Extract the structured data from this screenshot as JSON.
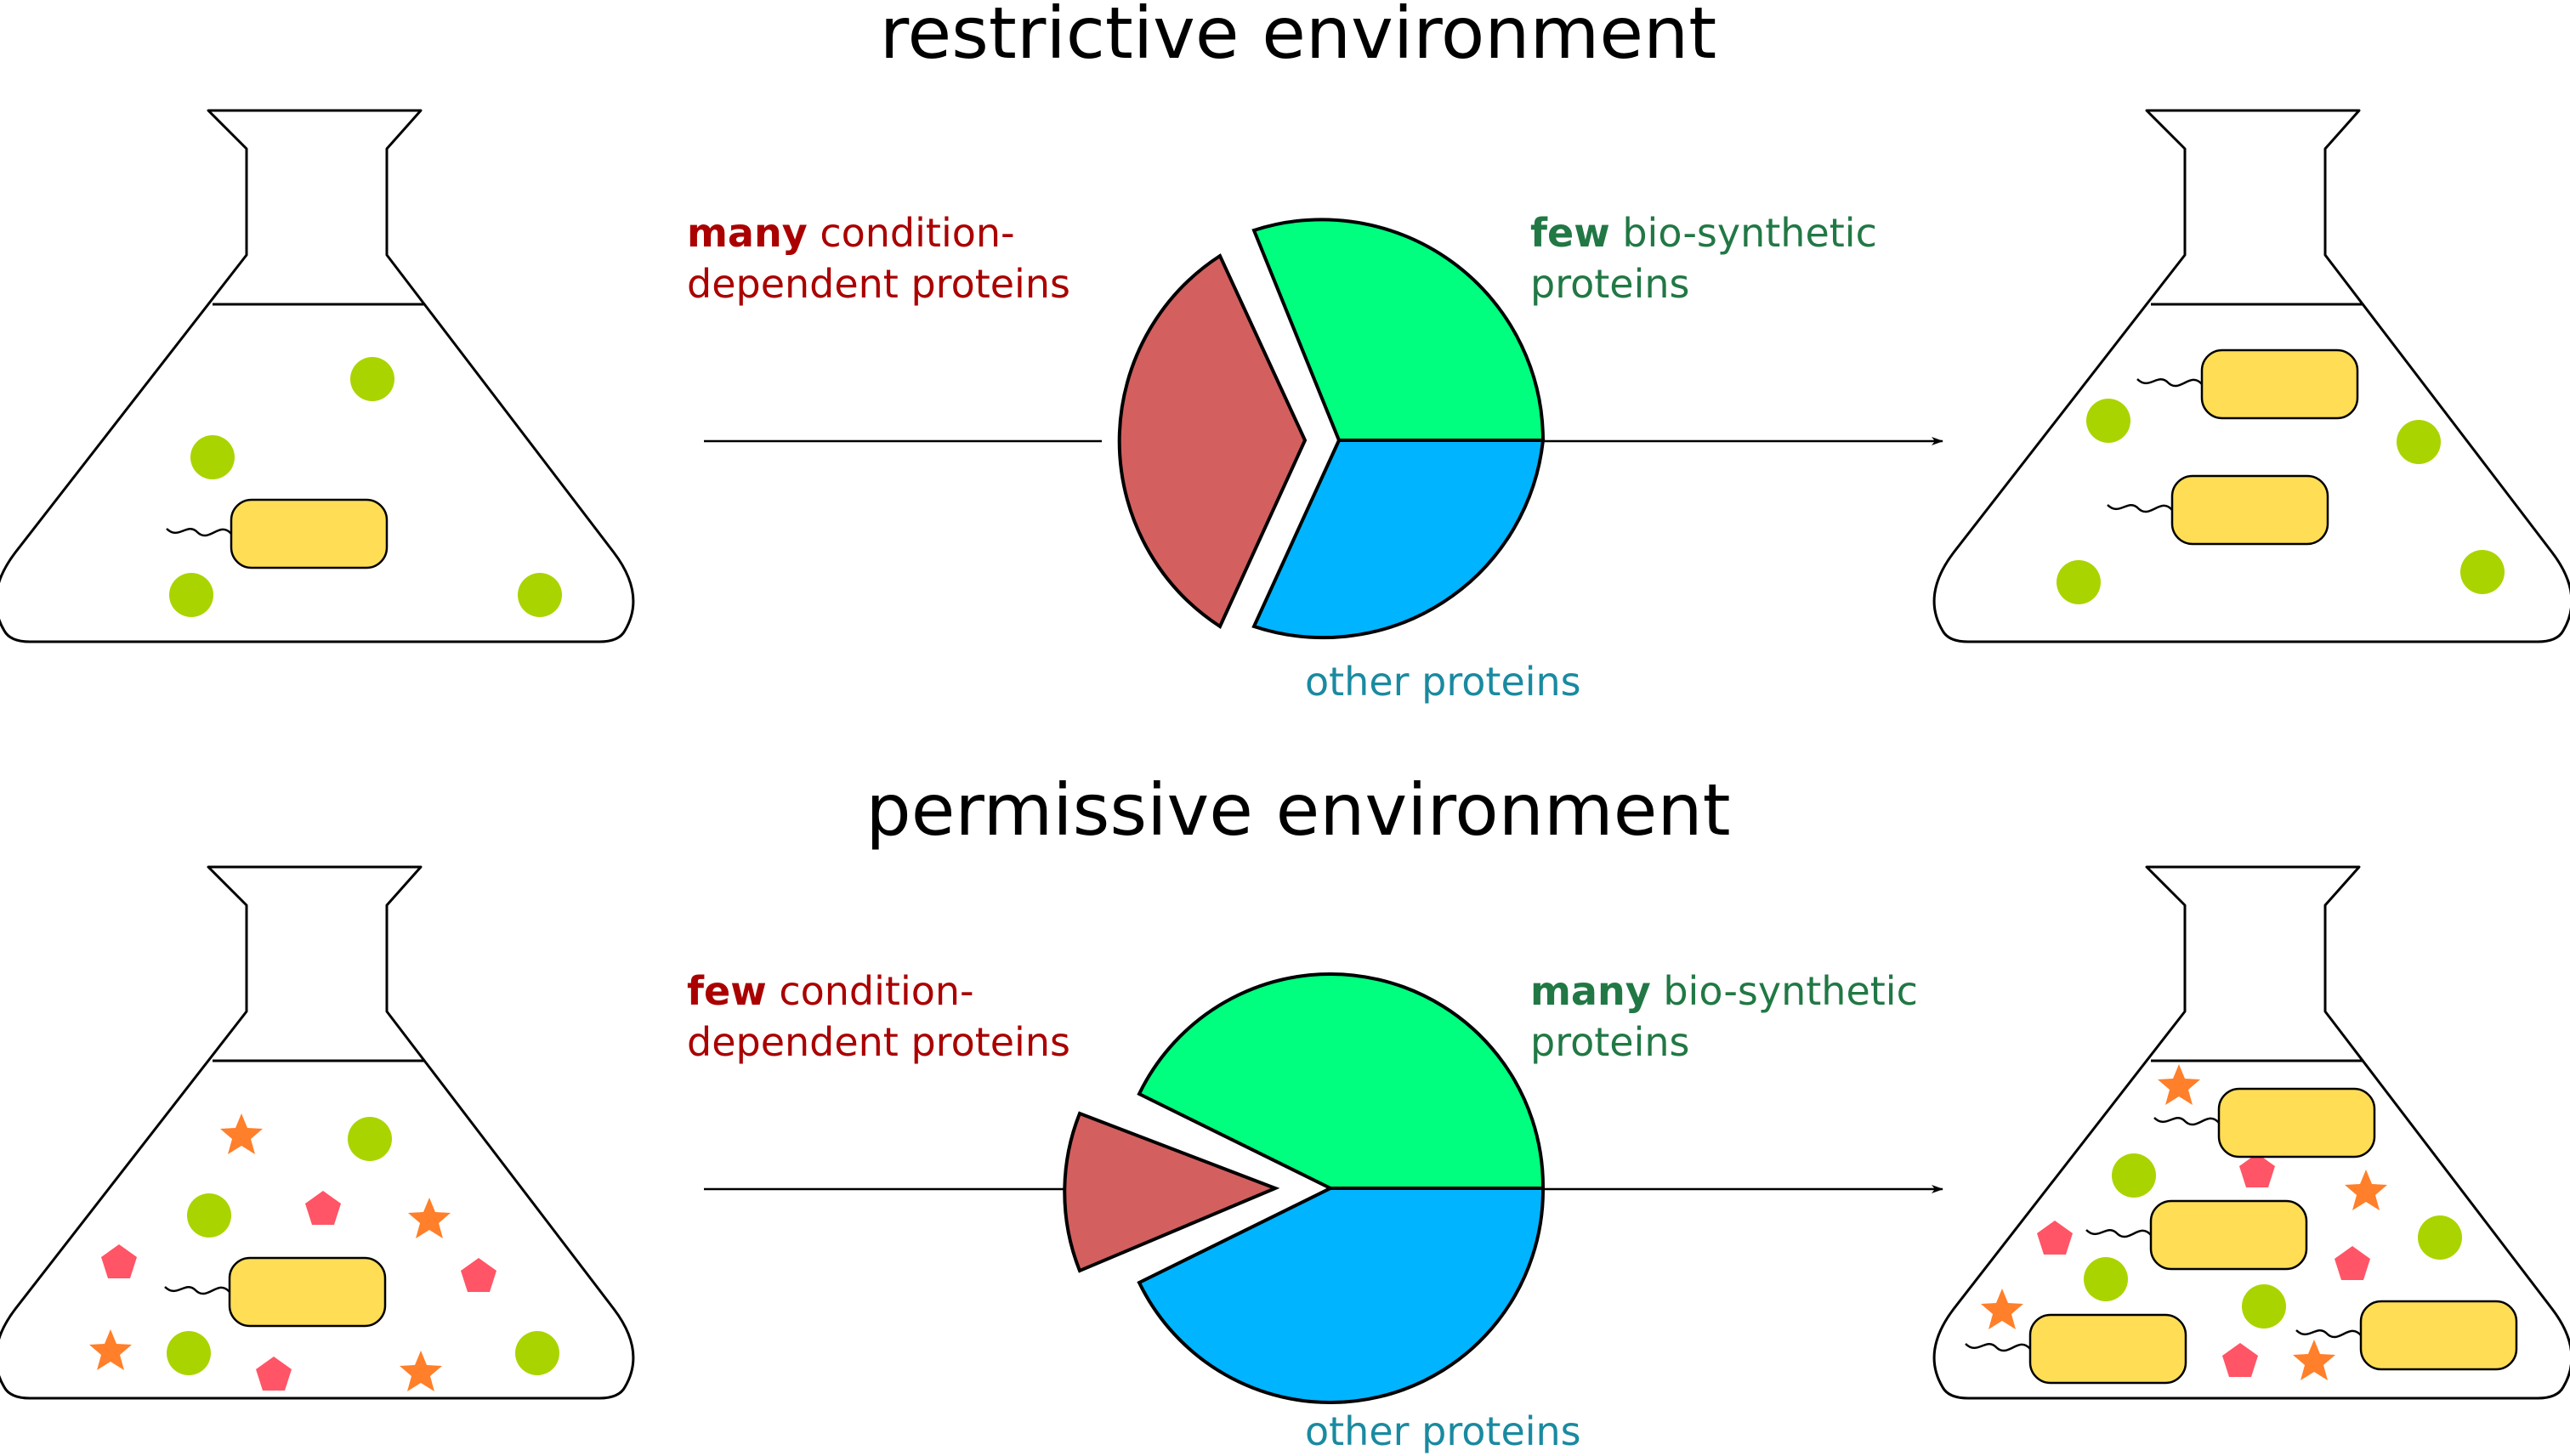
{
  "titles": {
    "restrictive": "restrictive environment",
    "permissive": "permissive environment"
  },
  "restrictive": {
    "cond_dep": {
      "qty": "many",
      "line1_rest": "condition-",
      "line2": "dependent proteins"
    },
    "biosynth": {
      "qty": "few",
      "line1_rest": "bio-synthetic",
      "line2": "proteins"
    },
    "other": "other proteins",
    "pie_fractions": {
      "condition_dependent": 0.36,
      "bio_synthetic": 0.32,
      "other": 0.32
    }
  },
  "permissive": {
    "cond_dep": {
      "qty": "few",
      "line1_rest": "condition-",
      "line2": "dependent proteins"
    },
    "biosynth": {
      "qty": "many",
      "line1_rest": "bio-synthetic",
      "line2": "proteins"
    },
    "other": "other proteins",
    "pie_fractions": {
      "condition_dependent": 0.1,
      "bio_synthetic": 0.42,
      "other": 0.48
    }
  },
  "colors": {
    "condition_dependent": "#d35f5f",
    "bio_synthetic": "#00ff7f",
    "other": "#00b4ff",
    "label_red": "#aa0000",
    "label_green": "#217844",
    "label_blue": "#1a8aa0",
    "bacterium": "#ffdd55",
    "nutrient_ball": "#aad400",
    "nutrient_pentagon": "#ff5566",
    "nutrient_star": "#ff7f2a"
  }
}
